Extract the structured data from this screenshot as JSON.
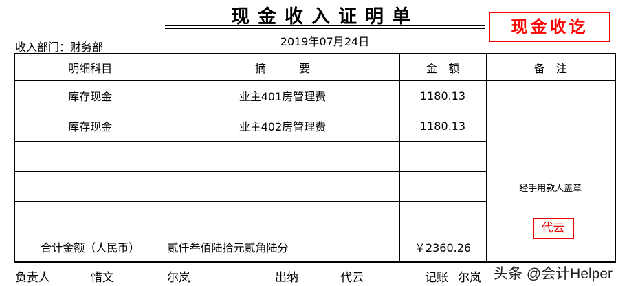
{
  "title": "现金收入证明单",
  "stamp_top": "现金收讫",
  "department": "收入部门：财务部",
  "date": "2019年07月24日",
  "table": {
    "headers": [
      "明细科目",
      "摘　　　要",
      "金　额",
      "备　注"
    ],
    "rows": [
      {
        "account": "库存现金",
        "summary": "业主401房管理费",
        "amount": "1180.13"
      },
      {
        "account": "库存现金",
        "summary": "业主402房管理费",
        "amount": "1180.13"
      },
      {
        "account": "",
        "summary": "",
        "amount": ""
      },
      {
        "account": "",
        "summary": "",
        "amount": ""
      },
      {
        "account": "",
        "summary": "",
        "amount": ""
      }
    ],
    "total": {
      "label": "合计金额（人民币）",
      "words": "贰仟叁佰陆拾元贰角陆分",
      "amount": "￥2360.26"
    },
    "remark_sign": "经手用款人盖章",
    "remark_seal": "代云"
  },
  "footer": [
    {
      "label": "负责人",
      "name": "惜文"
    },
    {
      "label": "出纳",
      "name": "代云"
    },
    {
      "label": "记账",
      "name": "尔岚"
    }
  ],
  "footer_extra": "尔岚",
  "watermark": "头条 @会计Helper",
  "colors": {
    "stamp": "#ff0000"
  }
}
